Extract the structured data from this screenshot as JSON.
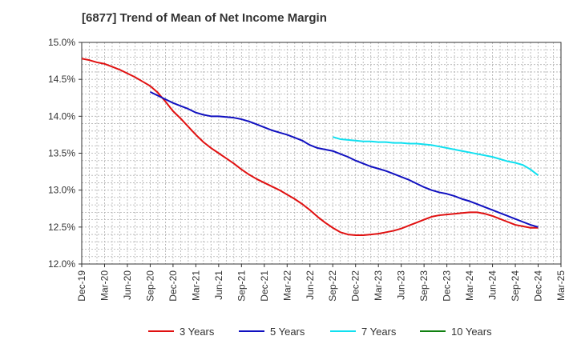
{
  "chart_data": {
    "type": "line",
    "title": "[6877]  Trend of Mean of Net Income Margin",
    "xlabel": "",
    "ylabel": "",
    "x_ticks": [
      "Dec-19",
      "Mar-20",
      "Jun-20",
      "Sep-20",
      "Dec-20",
      "Mar-21",
      "Jun-21",
      "Sep-21",
      "Dec-21",
      "Mar-22",
      "Jun-22",
      "Sep-22",
      "Dec-22",
      "Mar-23",
      "Jun-23",
      "Sep-23",
      "Dec-23",
      "Mar-24",
      "Jun-24",
      "Sep-24",
      "Dec-24",
      "Mar-25"
    ],
    "y_ticks": [
      "12.0%",
      "12.5%",
      "13.0%",
      "13.5%",
      "14.0%",
      "14.5%",
      "15.0%"
    ],
    "ylim": [
      12.0,
      15.0
    ],
    "grid": true,
    "legend_position": "bottom",
    "series": [
      {
        "name": "3 Years",
        "color": "#e01010",
        "x": [
          "Dec-19",
          "Jan-20",
          "Feb-20",
          "Mar-20",
          "Apr-20",
          "May-20",
          "Jun-20",
          "Jul-20",
          "Aug-20",
          "Sep-20",
          "Oct-20",
          "Nov-20",
          "Dec-20",
          "Jan-21",
          "Feb-21",
          "Mar-21",
          "Apr-21",
          "May-21",
          "Jun-21",
          "Jul-21",
          "Aug-21",
          "Sep-21",
          "Oct-21",
          "Nov-21",
          "Dec-21",
          "Jan-22",
          "Feb-22",
          "Mar-22",
          "Apr-22",
          "May-22",
          "Jun-22",
          "Jul-22",
          "Aug-22",
          "Sep-22",
          "Oct-22",
          "Nov-22",
          "Dec-22",
          "Jan-23",
          "Feb-23",
          "Mar-23",
          "Apr-23",
          "May-23",
          "Jun-23",
          "Jul-23",
          "Aug-23",
          "Sep-23",
          "Oct-23",
          "Nov-23",
          "Dec-23",
          "Jan-24",
          "Feb-24",
          "Mar-24",
          "Apr-24",
          "May-24",
          "Jun-24",
          "Jul-24",
          "Aug-24",
          "Sep-24",
          "Oct-24",
          "Nov-24",
          "Dec-24"
        ],
        "values": [
          14.78,
          14.76,
          14.73,
          14.71,
          14.67,
          14.63,
          14.58,
          14.53,
          14.47,
          14.41,
          14.32,
          14.2,
          14.07,
          13.97,
          13.86,
          13.75,
          13.65,
          13.57,
          13.5,
          13.43,
          13.36,
          13.28,
          13.21,
          13.15,
          13.1,
          13.05,
          13.0,
          12.94,
          12.88,
          12.81,
          12.73,
          12.64,
          12.56,
          12.49,
          12.43,
          12.4,
          12.39,
          12.39,
          12.4,
          12.41,
          12.43,
          12.45,
          12.48,
          12.52,
          12.56,
          12.6,
          12.64,
          12.66,
          12.67,
          12.68,
          12.69,
          12.7,
          12.7,
          12.68,
          12.65,
          12.61,
          12.57,
          12.53,
          12.51,
          12.49,
          12.49
        ]
      },
      {
        "name": "5 Years",
        "color": "#1010c0",
        "x": [
          "Sep-20",
          "Oct-20",
          "Nov-20",
          "Dec-20",
          "Jan-21",
          "Feb-21",
          "Mar-21",
          "Apr-21",
          "May-21",
          "Jun-21",
          "Jul-21",
          "Aug-21",
          "Sep-21",
          "Oct-21",
          "Nov-21",
          "Dec-21",
          "Jan-22",
          "Feb-22",
          "Mar-22",
          "Apr-22",
          "May-22",
          "Jun-22",
          "Jul-22",
          "Aug-22",
          "Sep-22",
          "Oct-22",
          "Nov-22",
          "Dec-22",
          "Jan-23",
          "Feb-23",
          "Mar-23",
          "Apr-23",
          "May-23",
          "Jun-23",
          "Jul-23",
          "Aug-23",
          "Sep-23",
          "Oct-23",
          "Nov-23",
          "Dec-23",
          "Jan-24",
          "Feb-24",
          "Mar-24",
          "Apr-24",
          "May-24",
          "Jun-24",
          "Jul-24",
          "Aug-24",
          "Sep-24",
          "Oct-24",
          "Nov-24",
          "Dec-24"
        ],
        "values": [
          14.33,
          14.28,
          14.23,
          14.18,
          14.14,
          14.1,
          14.05,
          14.02,
          14.0,
          14.0,
          13.99,
          13.98,
          13.96,
          13.93,
          13.89,
          13.85,
          13.81,
          13.78,
          13.75,
          13.71,
          13.67,
          13.61,
          13.57,
          13.55,
          13.53,
          13.49,
          13.45,
          13.4,
          13.36,
          13.32,
          13.29,
          13.26,
          13.22,
          13.18,
          13.14,
          13.09,
          13.04,
          13.0,
          12.97,
          12.95,
          12.92,
          12.88,
          12.85,
          12.81,
          12.77,
          12.73,
          12.69,
          12.65,
          12.61,
          12.57,
          12.53,
          12.5
        ]
      },
      {
        "name": "7 Years",
        "color": "#10e0f0",
        "x": [
          "Sep-22",
          "Oct-22",
          "Nov-22",
          "Dec-22",
          "Jan-23",
          "Feb-23",
          "Mar-23",
          "Apr-23",
          "May-23",
          "Jun-23",
          "Jul-23",
          "Aug-23",
          "Sep-23",
          "Oct-23",
          "Nov-23",
          "Dec-23",
          "Jan-24",
          "Feb-24",
          "Mar-24",
          "Apr-24",
          "May-24",
          "Jun-24",
          "Jul-24",
          "Aug-24",
          "Sep-24",
          "Oct-24",
          "Nov-24",
          "Dec-24"
        ],
        "values": [
          13.72,
          13.69,
          13.68,
          13.67,
          13.66,
          13.66,
          13.65,
          13.65,
          13.64,
          13.64,
          13.63,
          13.63,
          13.62,
          13.61,
          13.59,
          13.57,
          13.55,
          13.53,
          13.51,
          13.49,
          13.47,
          13.45,
          13.42,
          13.39,
          13.37,
          13.34,
          13.28,
          13.2
        ]
      },
      {
        "name": "10 Years",
        "color": "#108010",
        "x": [],
        "values": []
      }
    ]
  }
}
